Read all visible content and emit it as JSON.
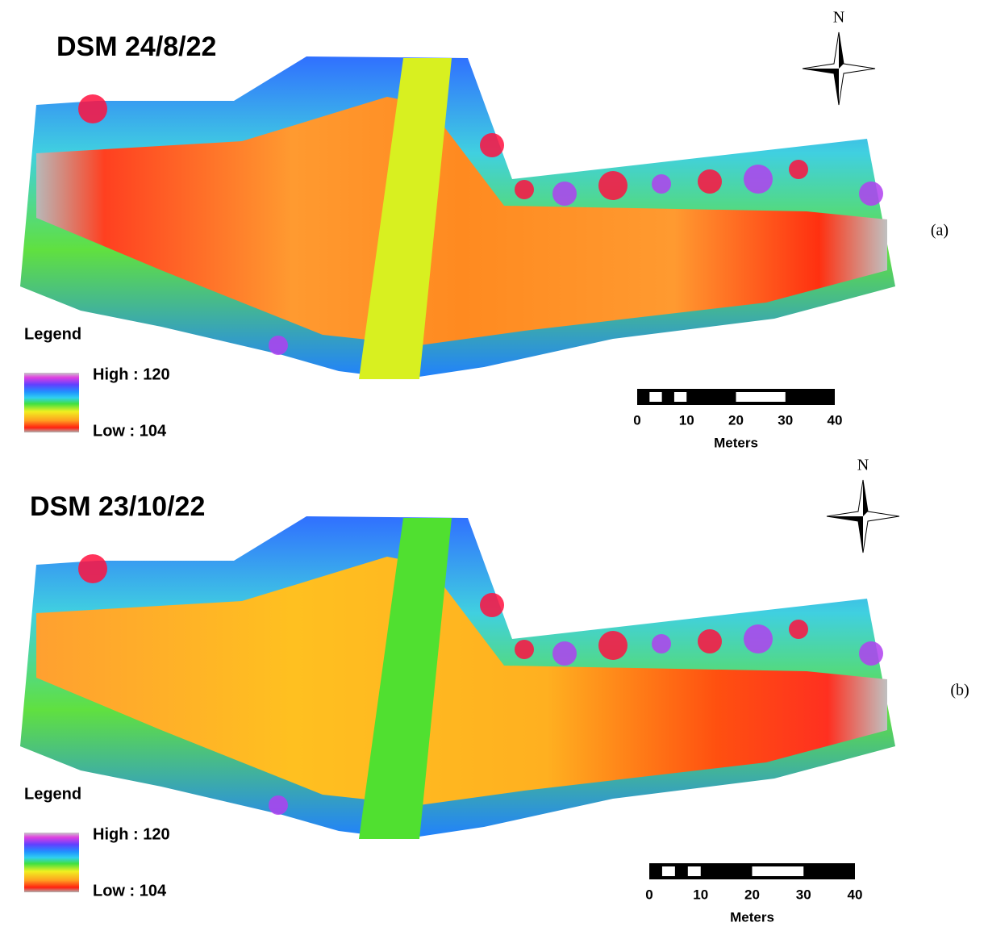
{
  "panels": [
    {
      "title": "DSM 24/8/22",
      "legend_title": "Legend",
      "high_label": "High : 120",
      "low_label": "Low : 104",
      "scale_ticks": [
        0,
        10,
        20,
        30,
        40
      ],
      "scale_unit": "Meters",
      "north": "N",
      "panel_label": "(a)"
    },
    {
      "title": "DSM 23/10/22",
      "legend_title": "Legend",
      "high_label": "High : 120",
      "low_label": "Low : 104",
      "scale_ticks": [
        0,
        10,
        20,
        30,
        40
      ],
      "scale_unit": "Meters",
      "north": "N",
      "panel_label": "(b)"
    }
  ]
}
